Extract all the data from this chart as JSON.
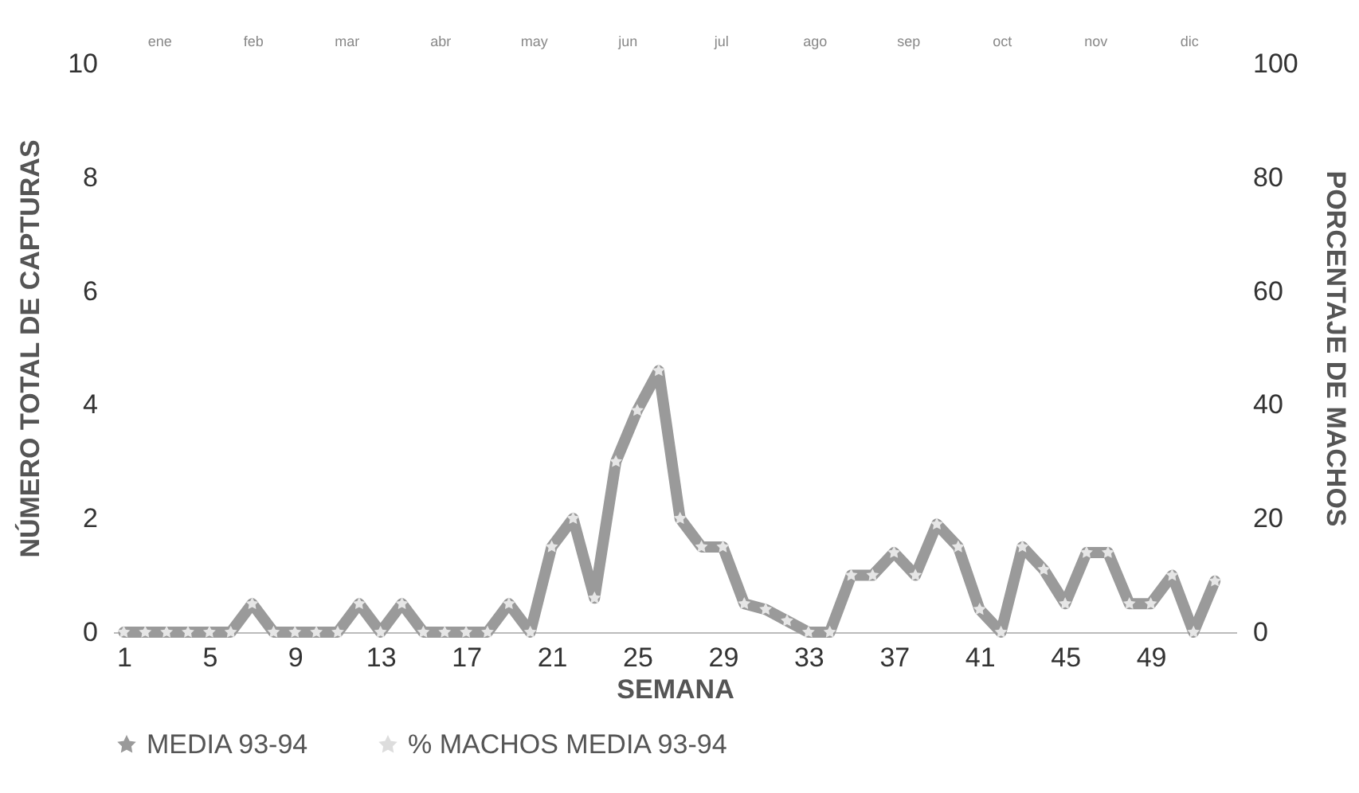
{
  "chart_data": {
    "type": "line",
    "xlabel": "SEMANA",
    "ylabel": "NÚMERO TOTAL DE CAPTURAS",
    "y2label": "PORCENTAJE DE MACHOS",
    "x": [
      1,
      2,
      3,
      4,
      5,
      6,
      7,
      8,
      9,
      10,
      11,
      12,
      13,
      14,
      15,
      16,
      17,
      18,
      19,
      20,
      21,
      22,
      23,
      24,
      25,
      26,
      27,
      28,
      29,
      30,
      31,
      32,
      33,
      34,
      35,
      36,
      37,
      38,
      39,
      40,
      41,
      42,
      43,
      44,
      45,
      46,
      47,
      48,
      49,
      50,
      51,
      52
    ],
    "series": [
      {
        "name": "MEDIA 93-94",
        "color": "#9a9a9a",
        "values": [
          0,
          0,
          0,
          0,
          0,
          0,
          0.5,
          0,
          0,
          0,
          0,
          0.5,
          0,
          0.5,
          0,
          0,
          0,
          0,
          0.5,
          0,
          1.5,
          2.0,
          0.6,
          3.0,
          3.9,
          4.6,
          2.0,
          1.5,
          1.5,
          0.5,
          0.4,
          0.2,
          0,
          0,
          1.0,
          1.0,
          1.4,
          1.0,
          1.9,
          1.5,
          0.4,
          0,
          1.5,
          1.1,
          0.5,
          1.4,
          1.4,
          0.5,
          0.5,
          1.0,
          0,
          0.9
        ]
      },
      {
        "name": "% MACHOS MEDIA 93-94",
        "axis": "y2",
        "color": "#dddddd",
        "values": [
          null,
          null,
          null,
          null,
          null,
          null,
          null,
          null,
          null,
          null,
          null,
          null,
          null,
          null,
          null,
          null,
          null,
          null,
          null,
          null,
          null,
          null,
          null,
          null,
          null,
          null,
          null,
          null,
          null,
          null,
          null,
          null,
          null,
          null,
          null,
          null,
          null,
          null,
          null,
          null,
          null,
          null,
          null,
          null,
          null,
          null,
          null,
          null,
          null,
          null,
          null,
          null
        ]
      }
    ],
    "xlim": [
      0.5,
      53
    ],
    "xticks": [
      1,
      5,
      9,
      13,
      17,
      21,
      25,
      29,
      33,
      37,
      41,
      45,
      49
    ],
    "ylim": [
      0,
      10
    ],
    "yticks": [
      0,
      2,
      4,
      6,
      8,
      10
    ],
    "y2lim": [
      0,
      100
    ],
    "y2ticks": [
      0,
      20,
      40,
      60,
      80,
      100
    ],
    "annotations": [
      "ene",
      "feb",
      "mar",
      "abr",
      "may",
      "jun",
      "jul",
      "ago",
      "sep",
      "oct",
      "nov",
      "dic"
    ],
    "marker": "star",
    "line_style": "solid",
    "legend": "bottom",
    "grid": false
  }
}
